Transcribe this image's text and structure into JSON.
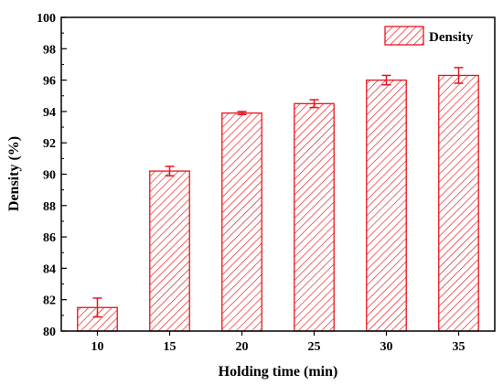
{
  "chart_data": {
    "type": "bar",
    "title": "",
    "xlabel": "Holding time (min)",
    "ylabel": "Density (%)",
    "categories": [
      "10",
      "15",
      "20",
      "25",
      "30",
      "35"
    ],
    "series": [
      {
        "name": "Density",
        "values": [
          81.5,
          90.2,
          93.9,
          94.5,
          96.0,
          96.3
        ],
        "errors": [
          0.6,
          0.3,
          0.1,
          0.25,
          0.3,
          0.5
        ]
      }
    ],
    "ylim": [
      80,
      100
    ],
    "yticks": [
      "80",
      "82",
      "84",
      "86",
      "88",
      "90",
      "92",
      "94",
      "96",
      "98",
      "100"
    ],
    "grid": false,
    "legend": "top-right",
    "colors": {
      "bar_edge": "#e8141c",
      "bar_hatch": "#e8141c",
      "error_bar": "#e8141c",
      "axis": "#000000"
    }
  }
}
